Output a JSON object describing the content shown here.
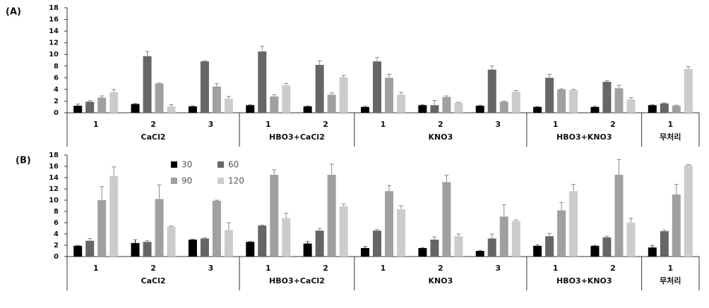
{
  "chart_data": [
    {
      "type": "bar",
      "label": "(A)",
      "ylim": [
        0,
        18
      ],
      "yticks": [
        0,
        2,
        4,
        6,
        8,
        10,
        12,
        14,
        16,
        18
      ],
      "groups": [
        {
          "name": "CaCl2",
          "categories": [
            "1",
            "2",
            "3"
          ]
        },
        {
          "name": "HBO3+CaCl2",
          "categories": [
            "1",
            "2"
          ]
        },
        {
          "name": "KNO3",
          "categories": [
            "1",
            "2",
            "3"
          ]
        },
        {
          "name": "HBO3+KNO3",
          "categories": [
            "1",
            "2"
          ]
        },
        {
          "name": "무처리",
          "categories": [
            "1"
          ]
        }
      ],
      "series": [
        {
          "color": "#000000",
          "values": [
            1.2,
            1.5,
            1.1,
            1.3,
            1.1,
            1.0,
            1.3,
            1.2,
            1.0,
            1.0,
            1.3
          ],
          "errors": [
            0.3,
            0.1,
            0.1,
            0.1,
            0.1,
            0.1,
            0.1,
            0.1,
            0.1,
            0.1,
            0.1
          ]
        },
        {
          "color": "#666666",
          "values": [
            1.9,
            9.7,
            8.8,
            10.5,
            8.2,
            8.8,
            1.3,
            7.4,
            6.0,
            5.3,
            1.6
          ],
          "errors": [
            0.2,
            0.8,
            0.1,
            0.9,
            0.7,
            0.7,
            0.8,
            0.6,
            0.6,
            0.2,
            0.1
          ]
        },
        {
          "color": "#a0a0a0",
          "values": [
            2.6,
            5.0,
            4.5,
            2.8,
            3.1,
            6.0,
            2.7,
            1.9,
            4.0,
            4.2,
            1.2
          ],
          "errors": [
            0.3,
            0.1,
            0.5,
            0.3,
            0.3,
            0.6,
            0.2,
            0.1,
            0.1,
            0.5,
            0.1
          ]
        },
        {
          "color": "#cccccc",
          "values": [
            3.5,
            1.1,
            2.4,
            4.7,
            6.1,
            3.1,
            1.7,
            3.6,
            3.9,
            2.3,
            7.5
          ],
          "errors": [
            0.5,
            0.3,
            0.4,
            0.3,
            0.3,
            0.4,
            0.1,
            0.2,
            0.1,
            0.3,
            0.4
          ]
        }
      ]
    },
    {
      "type": "bar",
      "label": "(B)",
      "ylim": [
        0,
        18
      ],
      "yticks": [
        0,
        2,
        4,
        6,
        8,
        10,
        12,
        14,
        16,
        18
      ],
      "groups": [
        {
          "name": "CaCl2",
          "categories": [
            "1",
            "2",
            "3"
          ]
        },
        {
          "name": "HBO3+CaCl2",
          "categories": [
            "1",
            "2"
          ]
        },
        {
          "name": "KNO3",
          "categories": [
            "1",
            "2",
            "3"
          ]
        },
        {
          "name": "HBO3+KNO3",
          "categories": [
            "1",
            "2"
          ]
        },
        {
          "name": "무처리",
          "categories": [
            "1"
          ]
        }
      ],
      "series": [
        {
          "name": "30",
          "color": "#000000",
          "values": [
            1.9,
            2.4,
            3.0,
            2.6,
            2.3,
            1.5,
            1.5,
            1.0,
            1.9,
            1.9,
            1.6
          ],
          "errors": [
            0.1,
            0.6,
            0.1,
            0.1,
            0.4,
            0.3,
            0.1,
            0.1,
            0.2,
            0.1,
            0.4
          ]
        },
        {
          "name": "60",
          "color": "#666666",
          "values": [
            2.8,
            2.6,
            3.2,
            5.5,
            4.6,
            4.6,
            3.0,
            3.2,
            3.6,
            3.4,
            4.5
          ],
          "errors": [
            0.4,
            0.2,
            0.1,
            0.1,
            0.4,
            0.2,
            0.5,
            0.8,
            0.5,
            0.2,
            0.2
          ]
        },
        {
          "name": "90",
          "color": "#a0a0a0",
          "values": [
            10.0,
            10.2,
            9.9,
            14.5,
            14.5,
            11.6,
            13.2,
            7.1,
            8.2,
            14.5,
            11.0
          ],
          "errors": [
            2.4,
            2.5,
            0.1,
            0.9,
            1.9,
            1.0,
            1.2,
            2.1,
            1.4,
            2.7,
            1.8
          ]
        },
        {
          "name": "120",
          "color": "#cccccc",
          "values": [
            14.3,
            5.3,
            4.7,
            6.8,
            8.9,
            8.4,
            3.6,
            6.3,
            11.6,
            6.0,
            16.2
          ],
          "errors": [
            1.6,
            0.1,
            1.3,
            0.9,
            0.4,
            0.6,
            0.4,
            0.2,
            1.2,
            0.8,
            0.1
          ]
        }
      ]
    }
  ]
}
